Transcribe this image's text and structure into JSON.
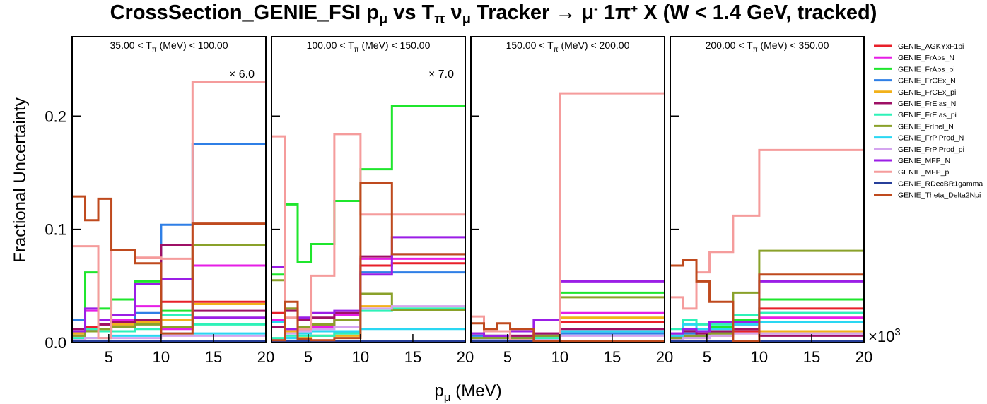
{
  "title": {
    "part1": "CrossSection_GENIE_FSI p",
    "sub1": "μ",
    "part2": " vs T",
    "sub2": "π",
    "part3": "  ν",
    "sub3": "μ",
    "part4": " Tracker  → μ",
    "sup1": "-",
    "part5": " 1π",
    "sup2": "+",
    "part6": " X  (W < 1.4 GeV, tracked)"
  },
  "axes": {
    "ylabel": "Fractional Uncertainty",
    "xlabel_main": "p",
    "xlabel_sub": "μ",
    "xlabel_unit": " (MeV)",
    "exponent": "×10",
    "exponent_power": "3"
  },
  "chart_data": {
    "type": "line",
    "drawstyle": "steps",
    "bin_edges": [
      1.5,
      2.75,
      4,
      5.25,
      7.5,
      10,
      13,
      20
    ],
    "xlim": [
      1.5,
      20
    ],
    "ylim": [
      0,
      0.27
    ],
    "xticks": [
      "5",
      "10",
      "15",
      "20"
    ],
    "yticks": [
      "0.0",
      "0.1",
      "0.2"
    ],
    "legend_position": "right",
    "series_names": [
      "GENIE_AGKYxF1pi",
      "GENIE_FrAbs_N",
      "GENIE_FrAbs_pi",
      "GENIE_FrCEx_N",
      "GENIE_FrCEx_pi",
      "GENIE_FrElas_N",
      "GENIE_FrElas_pi",
      "GENIE_FrInel_N",
      "GENIE_FrPiProd_N",
      "GENIE_FrPiProd_pi",
      "GENIE_MFP_N",
      "GENIE_MFP_pi",
      "GENIE_RDecBR1gamma",
      "GENIE_Theta_Delta2Npi"
    ],
    "series_colors": [
      "#e8202a",
      "#e61ee6",
      "#1fe62d",
      "#2f7fe6",
      "#f2b11a",
      "#9e1065",
      "#2ef2b8",
      "#8aa12a",
      "#2ad7f2",
      "#d4a4ef",
      "#9b1ee6",
      "#f59c9c",
      "#273f9a",
      "#bf4a1e"
    ],
    "panels": [
      {
        "label": "35.00 < T",
        "label_sub": "π",
        "label_rest": " (MeV) < 100.00",
        "scale": "× 6.0",
        "series": [
          {
            "name": "GENIE_AGKYxF1pi",
            "values": [
              0.01,
              0.014,
              0.016,
              0.018,
              0.02,
              0.036,
              0.036
            ]
          },
          {
            "name": "GENIE_FrAbs_N",
            "values": [
              0.006,
              0.028,
              0.01,
              0.02,
              0.032,
              0.012,
              0.068
            ]
          },
          {
            "name": "GENIE_FrAbs_pi",
            "values": [
              0.008,
              0.062,
              0.03,
              0.038,
              0.054,
              0.028,
              0.086
            ]
          },
          {
            "name": "GENIE_FrCEx_N",
            "values": [
              0.02,
              0.01,
              0.01,
              0.015,
              0.026,
              0.104,
              0.175
            ]
          },
          {
            "name": "GENIE_FrCEx_pi",
            "values": [
              0.008,
              0.012,
              0.012,
              0.016,
              0.018,
              0.02,
              0.034
            ]
          },
          {
            "name": "GENIE_FrElas_N",
            "values": [
              0.012,
              0.012,
              0.016,
              0.018,
              0.02,
              0.086,
              0.028
            ]
          },
          {
            "name": "GENIE_FrElas_pi",
            "values": [
              0.004,
              0.012,
              0.01,
              0.01,
              0.012,
              0.024,
              0.016
            ]
          },
          {
            "name": "GENIE_FrInel_N",
            "values": [
              0.006,
              0.01,
              0.012,
              0.014,
              0.016,
              0.014,
              0.086
            ]
          },
          {
            "name": "GENIE_FrPiProd_N",
            "values": [
              0.002,
              0.004,
              0.004,
              0.006,
              0.006,
              0.008,
              0.008
            ]
          },
          {
            "name": "GENIE_FrPiProd_pi",
            "values": [
              0.002,
              0.004,
              0.004,
              0.004,
              0.004,
              0.006,
              0.006
            ]
          },
          {
            "name": "GENIE_MFP_N",
            "values": [
              0.01,
              0.03,
              0.02,
              0.024,
              0.052,
              0.056,
              0.022
            ]
          },
          {
            "name": "GENIE_MFP_pi",
            "values": [
              0.085,
              0.085,
              0.004,
              0.082,
              0.075,
              0.074,
              0.23
            ]
          },
          {
            "name": "GENIE_RDecBR1gamma",
            "values": [
              0.001,
              0.001,
              0.001,
              0.001,
              0.001,
              0.001,
              0.001
            ]
          },
          {
            "name": "GENIE_Theta_Delta2Npi",
            "values": [
              0.129,
              0.108,
              0.127,
              0.082,
              0.07,
              0.008,
              0.105
            ]
          }
        ]
      },
      {
        "label": "100.00 < T",
        "label_sub": "π",
        "label_rest": " (MeV) < 150.00",
        "scale": "× 7.0",
        "series": [
          {
            "name": "GENIE_AGKYxF1pi",
            "values": [
              0.026,
              0.03,
              0.012,
              0.016,
              0.02,
              0.068,
              0.07
            ]
          },
          {
            "name": "GENIE_FrAbs_N",
            "values": [
              0.02,
              0.012,
              0.01,
              0.014,
              0.024,
              0.074,
              0.074
            ]
          },
          {
            "name": "GENIE_FrAbs_pi",
            "values": [
              0.06,
              0.122,
              0.071,
              0.087,
              0.125,
              0.153,
              0.209
            ]
          },
          {
            "name": "GENIE_FrCEx_N",
            "values": [
              0.002,
              0.004,
              0.004,
              0.006,
              0.008,
              0.062,
              0.062
            ]
          },
          {
            "name": "GENIE_FrCEx_pi",
            "values": [
              0.001,
              0.01,
              0.004,
              0.006,
              0.006,
              0.032,
              0.03
            ]
          },
          {
            "name": "GENIE_FrElas_N",
            "values": [
              0.014,
              0.028,
              0.02,
              0.022,
              0.026,
              0.076,
              0.078
            ]
          },
          {
            "name": "GENIE_FrElas_pi",
            "values": [
              0.004,
              0.006,
              0.006,
              0.006,
              0.008,
              0.028,
              0.03
            ]
          },
          {
            "name": "GENIE_FrInel_N",
            "values": [
              0.055,
              0.03,
              0.014,
              0.016,
              0.02,
              0.043,
              0.029
            ]
          },
          {
            "name": "GENIE_FrPiProd_N",
            "values": [
              0.018,
              0.004,
              0.008,
              0.01,
              0.01,
              0.012,
              0.012
            ]
          },
          {
            "name": "GENIE_FrPiProd_pi",
            "values": [
              0.002,
              0.008,
              0.01,
              0.012,
              0.014,
              0.03,
              0.032
            ]
          },
          {
            "name": "GENIE_MFP_N",
            "values": [
              0.067,
              0.012,
              0.022,
              0.026,
              0.028,
              0.06,
              0.093
            ]
          },
          {
            "name": "GENIE_MFP_pi",
            "values": [
              0.182,
              0.022,
              0.012,
              0.059,
              0.184,
              0.113,
              0.113
            ]
          },
          {
            "name": "GENIE_RDecBR1gamma",
            "values": [
              0.001,
              0.001,
              0.001,
              0.001,
              0.001,
              0.001,
              0.001
            ]
          },
          {
            "name": "GENIE_Theta_Delta2Npi",
            "values": [
              0.002,
              0.036,
              0.003,
              0.002,
              0.004,
              0.141,
              0.078
            ]
          }
        ]
      },
      {
        "label": "150.00 < T",
        "label_sub": "π",
        "label_rest": " (MeV) < 200.00",
        "scale": "",
        "series": [
          {
            "name": "GENIE_AGKYxF1pi",
            "values": [
              0.004,
              0.004,
              0.004,
              0.004,
              0.006,
              0.018,
              0.018
            ]
          },
          {
            "name": "GENIE_FrAbs_N",
            "values": [
              0.004,
              0.004,
              0.004,
              0.006,
              0.008,
              0.026,
              0.026
            ]
          },
          {
            "name": "GENIE_FrAbs_pi",
            "values": [
              0.004,
              0.006,
              0.006,
              0.004,
              0.006,
              0.044,
              0.044
            ]
          },
          {
            "name": "GENIE_FrCEx_N",
            "values": [
              0.006,
              0.004,
              0.004,
              0.004,
              0.006,
              0.008,
              0.008
            ]
          },
          {
            "name": "GENIE_FrCEx_pi",
            "values": [
              0.002,
              0.002,
              0.002,
              0.002,
              0.004,
              0.022,
              0.022
            ]
          },
          {
            "name": "GENIE_FrElas_N",
            "values": [
              0.008,
              0.006,
              0.006,
              0.006,
              0.008,
              0.012,
              0.012
            ]
          },
          {
            "name": "GENIE_FrElas_pi",
            "values": [
              0.002,
              0.002,
              0.002,
              0.002,
              0.004,
              0.01,
              0.01
            ]
          },
          {
            "name": "GENIE_FrInel_N",
            "values": [
              0.004,
              0.004,
              0.004,
              0.004,
              0.006,
              0.04,
              0.04
            ]
          },
          {
            "name": "GENIE_FrPiProd_N",
            "values": [
              0.002,
              0.002,
              0.002,
              0.002,
              0.002,
              0.01,
              0.01
            ]
          },
          {
            "name": "GENIE_FrPiProd_pi",
            "values": [
              0.002,
              0.002,
              0.002,
              0.002,
              0.002,
              0.006,
              0.006
            ]
          },
          {
            "name": "GENIE_MFP_N",
            "values": [
              0.008,
              0.006,
              0.006,
              0.01,
              0.02,
              0.054,
              0.054
            ]
          },
          {
            "name": "GENIE_MFP_pi",
            "values": [
              0.023,
              0.01,
              0.01,
              0.002,
              0.001,
              0.22,
              0.22
            ]
          },
          {
            "name": "GENIE_RDecBR1gamma",
            "values": [
              0.001,
              0.001,
              0.001,
              0.001,
              0.001,
              0.001,
              0.001
            ]
          },
          {
            "name": "GENIE_Theta_Delta2Npi",
            "values": [
              0.017,
              0.012,
              0.017,
              0.012,
              0.001,
              0.001,
              0.001
            ]
          }
        ]
      },
      {
        "label": "200.00 < T",
        "label_sub": "π",
        "label_rest": " (MeV) < 350.00",
        "scale": "",
        "series": [
          {
            "name": "GENIE_AGKYxF1pi",
            "values": [
              0.004,
              0.006,
              0.006,
              0.008,
              0.01,
              0.03,
              0.03
            ]
          },
          {
            "name": "GENIE_FrAbs_N",
            "values": [
              0.008,
              0.012,
              0.01,
              0.014,
              0.016,
              0.022,
              0.022
            ]
          },
          {
            "name": "GENIE_FrAbs_pi",
            "values": [
              0.006,
              0.012,
              0.01,
              0.014,
              0.02,
              0.038,
              0.038
            ]
          },
          {
            "name": "GENIE_FrCEx_N",
            "values": [
              0.004,
              0.008,
              0.006,
              0.008,
              0.012,
              0.026,
              0.026
            ]
          },
          {
            "name": "GENIE_FrCEx_pi",
            "values": [
              0.002,
              0.004,
              0.004,
              0.006,
              0.008,
              0.01,
              0.01
            ]
          },
          {
            "name": "GENIE_FrElas_N",
            "values": [
              0.006,
              0.01,
              0.008,
              0.01,
              0.012,
              0.006,
              0.006
            ]
          },
          {
            "name": "GENIE_FrElas_pi",
            "values": [
              0.012,
              0.02,
              0.016,
              0.016,
              0.024,
              0.026,
              0.026
            ]
          },
          {
            "name": "GENIE_FrInel_N",
            "values": [
              0.004,
              0.006,
              0.006,
              0.008,
              0.044,
              0.081,
              0.081
            ]
          },
          {
            "name": "GENIE_FrPiProd_N",
            "values": [
              0.006,
              0.016,
              0.012,
              0.012,
              0.016,
              0.018,
              0.018
            ]
          },
          {
            "name": "GENIE_FrPiProd_pi",
            "values": [
              0.002,
              0.004,
              0.004,
              0.006,
              0.008,
              0.008,
              0.008
            ]
          },
          {
            "name": "GENIE_MFP_N",
            "values": [
              0.008,
              0.012,
              0.01,
              0.018,
              0.018,
              0.054,
              0.054
            ]
          },
          {
            "name": "GENIE_MFP_pi",
            "values": [
              0.04,
              0.03,
              0.062,
              0.08,
              0.112,
              0.17,
              0.17
            ]
          },
          {
            "name": "GENIE_RDecBR1gamma",
            "values": [
              0.001,
              0.001,
              0.001,
              0.001,
              0.001,
              0.001,
              0.001
            ]
          },
          {
            "name": "GENIE_Theta_Delta2Npi",
            "values": [
              0.068,
              0.073,
              0.054,
              0.036,
              0.001,
              0.06,
              0.06
            ]
          }
        ]
      }
    ]
  }
}
